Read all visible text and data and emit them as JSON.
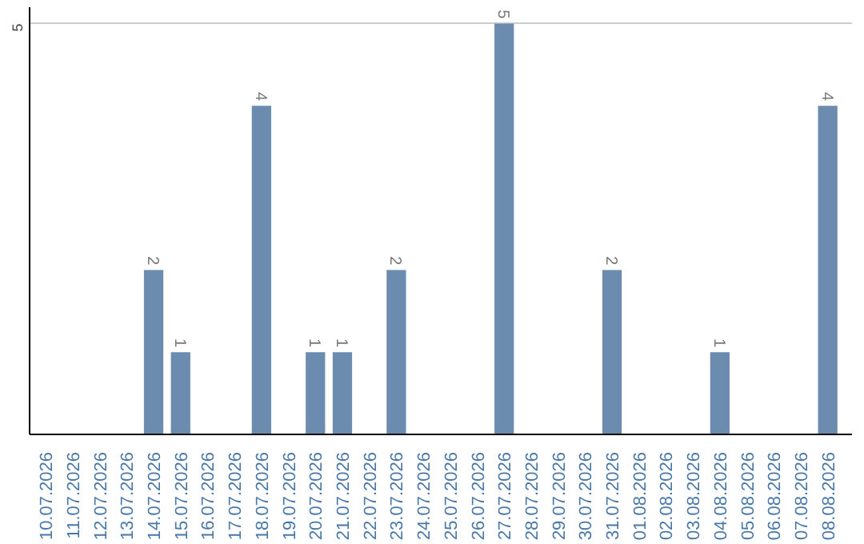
{
  "chart_data": {
    "type": "bar",
    "categories": [
      "10.07.2026",
      "11.07.2026",
      "12.07.2026",
      "13.07.2026",
      "14.07.2026",
      "15.07.2026",
      "16.07.2026",
      "17.07.2026",
      "18.07.2026",
      "19.07.2026",
      "20.07.2026",
      "21.07.2026",
      "22.07.2026",
      "23.07.2026",
      "24.07.2026",
      "25.07.2026",
      "26.07.2026",
      "27.07.2026",
      "28.07.2026",
      "29.07.2026",
      "30.07.2026",
      "31.07.2026",
      "01.08.2026",
      "02.08.2026",
      "03.08.2026",
      "04.08.2026",
      "05.08.2026",
      "06.08.2026",
      "07.08.2026",
      "08.08.2026"
    ],
    "values": [
      0,
      0,
      0,
      0,
      2,
      1,
      0,
      0,
      4,
      0,
      1,
      1,
      0,
      2,
      0,
      0,
      0,
      5,
      0,
      0,
      0,
      2,
      0,
      0,
      0,
      1,
      0,
      0,
      0,
      4
    ],
    "value_labels": [
      null,
      null,
      null,
      null,
      "2",
      "1",
      null,
      null,
      "4",
      null,
      "1",
      "1",
      null,
      "2",
      null,
      null,
      null,
      "5",
      null,
      null,
      null,
      "2",
      null,
      null,
      null,
      "1",
      null,
      null,
      null,
      "4"
    ],
    "color": "#6b8cae",
    "ylim": [
      0,
      5.2
    ],
    "yticks": [
      5
    ],
    "grid": "y"
  }
}
